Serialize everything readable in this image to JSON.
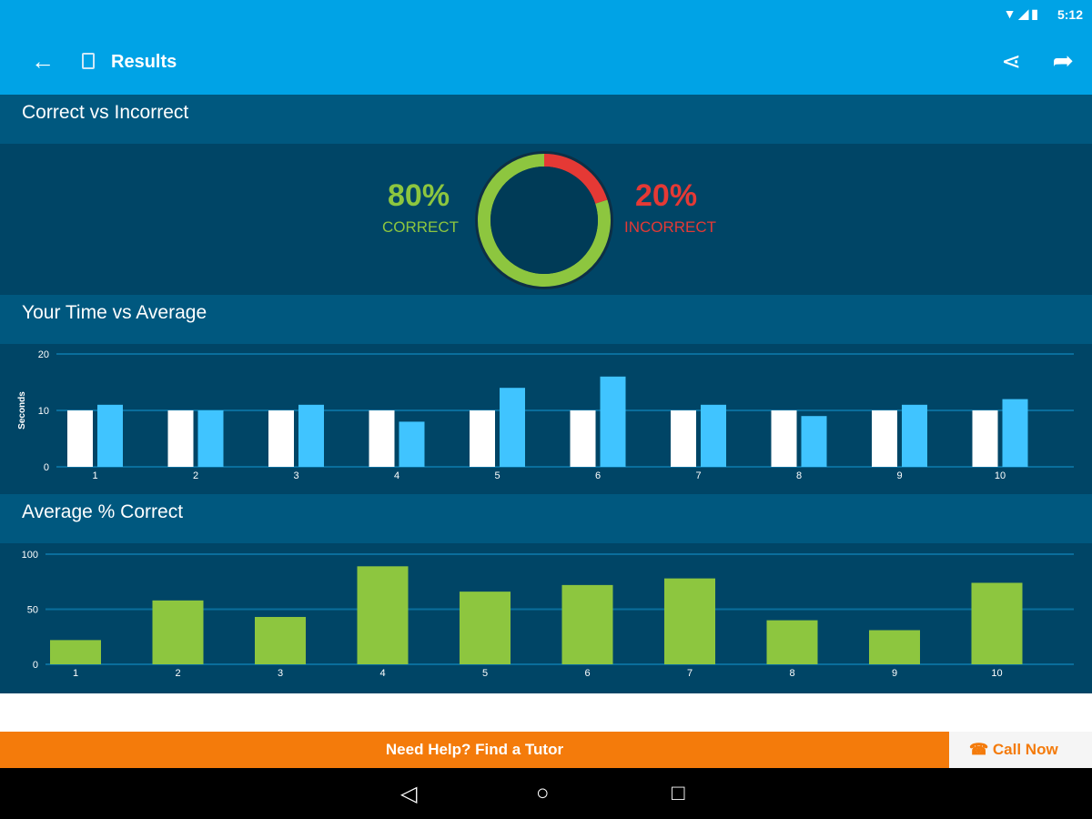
{
  "status": {
    "time": "5:12"
  },
  "appbar": {
    "title": "Results",
    "icons": [
      "back-arrow",
      "document",
      "share",
      "logo"
    ]
  },
  "sections": {
    "correct": {
      "title": "Correct vs Incorrect",
      "correct_pct": "80%",
      "correct_label": "CORRECT",
      "incorrect_pct": "20%",
      "incorrect_label": "INCORRECT",
      "correct_fraction": 0.8,
      "colors": {
        "correct": "#8dc63f",
        "incorrect": "#e53935"
      }
    },
    "time": {
      "title": "Your Time vs Average"
    },
    "avg": {
      "title": "Average % Correct"
    }
  },
  "chart_data": [
    {
      "type": "bar",
      "categories": [
        "1",
        "2",
        "3",
        "4",
        "5",
        "6",
        "7",
        "8",
        "9",
        "10"
      ],
      "ylabel": "Seconds",
      "ylim": [
        0,
        20
      ],
      "yticks": [
        "0",
        "10",
        "20"
      ],
      "grid": true,
      "series": [
        {
          "values": [
            10,
            10,
            10,
            10,
            10,
            10,
            10,
            10,
            10,
            10
          ],
          "color": "#ffffff"
        },
        {
          "values": [
            11,
            10,
            11,
            8,
            14,
            16,
            11,
            9,
            11,
            12
          ],
          "color": "#40c4ff"
        }
      ]
    },
    {
      "type": "bar",
      "categories": [
        "1",
        "2",
        "3",
        "4",
        "5",
        "6",
        "7",
        "8",
        "9",
        "10"
      ],
      "ylim": [
        0,
        100
      ],
      "yticks": [
        "0",
        "50",
        "100"
      ],
      "grid": true,
      "series": [
        {
          "values": [
            22,
            58,
            43,
            89,
            66,
            72,
            78,
            40,
            31,
            74
          ],
          "color": "#8dc63f"
        }
      ]
    }
  ],
  "footer": {
    "help": "Need Help? Find a Tutor",
    "call": "Call Now"
  }
}
